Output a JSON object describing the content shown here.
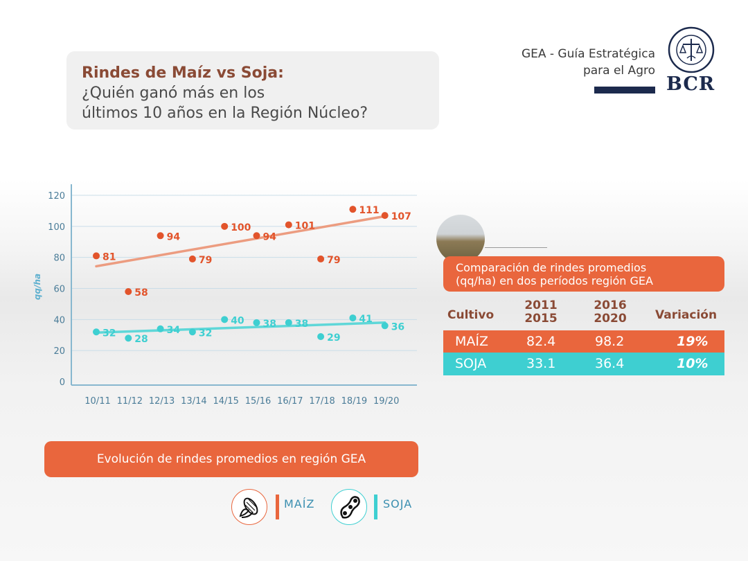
{
  "title": {
    "bold": "Rindes de Maíz vs Soja:",
    "line2": "¿Quién ganó más en los",
    "line3": "últimos 10 años en la Región Núcleo?"
  },
  "brand": {
    "line1": "GEA - Guía Estratégica",
    "line2": "para el Agro",
    "logo_text": "BCR",
    "seal_text": "BOLSA DE COMERCIO DE ROSARIO"
  },
  "chart_data": {
    "type": "line",
    "title": "",
    "xlabel": "",
    "ylabel": "qq/ha",
    "ylim": [
      0,
      120
    ],
    "yticks": [
      0,
      20,
      40,
      60,
      80,
      100,
      120
    ],
    "categories": [
      "10/11",
      "11/12",
      "12/13",
      "13/14",
      "14/15",
      "15/16",
      "16/17",
      "17/18",
      "18/19",
      "19/20"
    ],
    "series": [
      {
        "name": "MAÍZ",
        "color": "#e2542b",
        "trend_color": "#ec9c80",
        "values": [
          81,
          58,
          94,
          79,
          100,
          94,
          101,
          79,
          111,
          107
        ]
      },
      {
        "name": "SOJA",
        "color": "#3ecfd1",
        "trend_color": "#5fd7d8",
        "values": [
          32,
          28,
          34,
          32,
          40,
          38,
          38,
          29,
          41,
          36
        ]
      }
    ],
    "grid": true
  },
  "footer_label": "Evolución de rindes promedios en región GEA",
  "comparison": {
    "title_line1": "Comparación de rindes promedios",
    "title_line2": "(qq/ha) en dos períodos región GEA",
    "headers": {
      "crop": "Cultivo",
      "p1_a": "2011",
      "p1_b": "2015",
      "p2_a": "2016",
      "p2_b": "2020",
      "variation": "Variación"
    },
    "rows": [
      {
        "crop": "MAÍZ",
        "p1": "82.4",
        "p2": "98.2",
        "variation": "19%"
      },
      {
        "crop": "SOJA",
        "p1": "33.1",
        "p2": "36.4",
        "variation": "10%"
      }
    ]
  },
  "legend": {
    "maiz": "MAÍZ",
    "soja": "SOJA",
    "maiz_icon": "corn-icon",
    "soja_icon": "soybean-pod-icon"
  },
  "colors": {
    "maiz": "#e9663d",
    "soja": "#3ecfd1",
    "navy": "#1c2a4d",
    "title_brown": "#8a4a35"
  }
}
